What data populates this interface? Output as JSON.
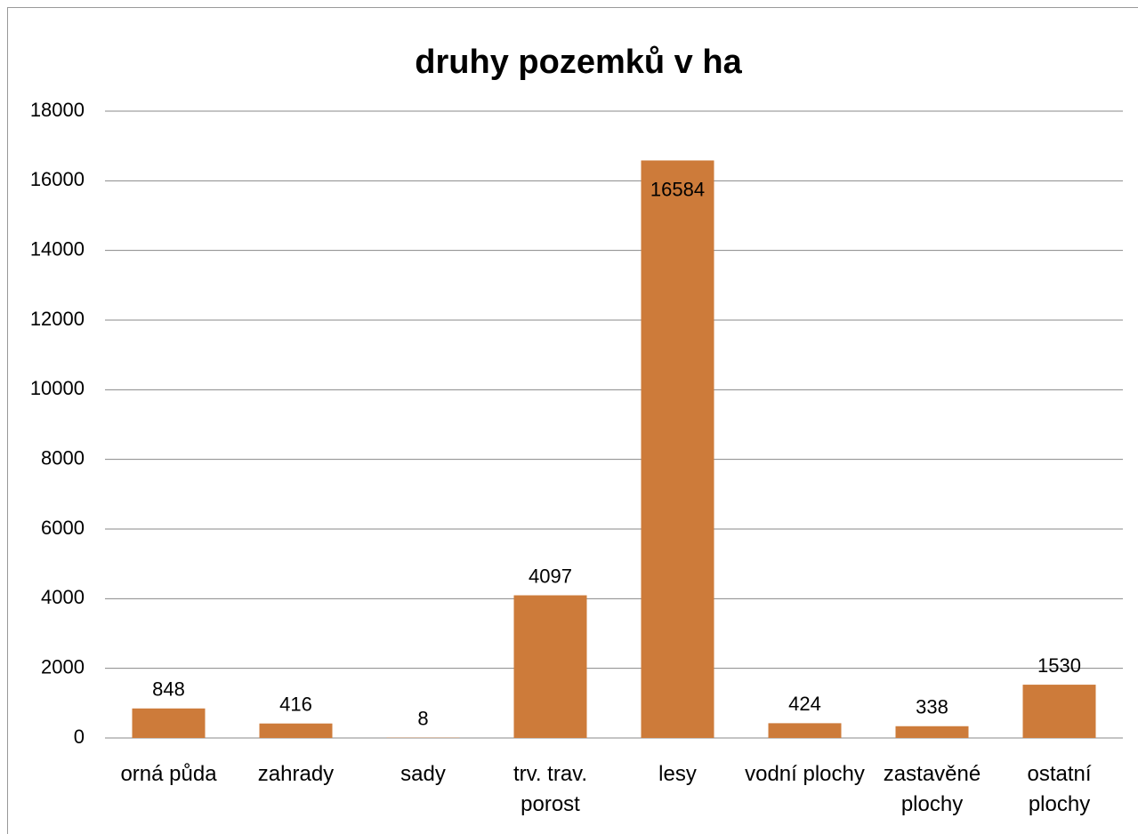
{
  "chart_data": {
    "type": "bar",
    "title": "druhy pozemků v ha",
    "categories": [
      "orná půda",
      "zahrady",
      "sady",
      "trv. trav. porost",
      "lesy",
      "vodní plochy",
      "zastavěné plochy",
      "ostatní plochy"
    ],
    "values": [
      848,
      416,
      8,
      4097,
      16584,
      424,
      338,
      1530
    ],
    "color": "#cd7b3a",
    "ylim": [
      0,
      18000
    ],
    "yticks": [
      0,
      2000,
      4000,
      6000,
      8000,
      10000,
      12000,
      14000,
      16000,
      18000
    ],
    "grid": true,
    "data_labels": true
  }
}
